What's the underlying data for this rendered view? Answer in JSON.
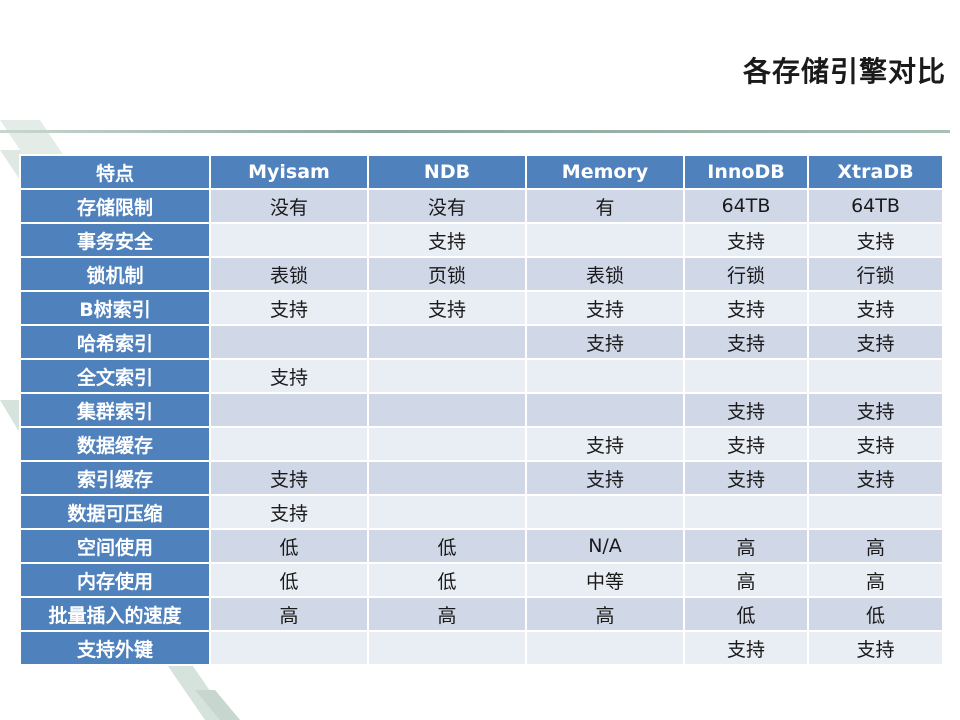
{
  "slide": {
    "title": "各存储引擎对比"
  },
  "table": {
    "headers": [
      "特点",
      "Myisam",
      "NDB",
      "Memory",
      "InnoDB",
      "XtraDB"
    ],
    "rows": [
      {
        "feature": "存储限制",
        "cells": [
          "没有",
          "没有",
          "有",
          "64TB",
          "64TB"
        ]
      },
      {
        "feature": "事务安全",
        "cells": [
          "",
          "支持",
          "",
          "支持",
          "支持"
        ]
      },
      {
        "feature": "锁机制",
        "cells": [
          "表锁",
          "页锁",
          "表锁",
          "行锁",
          "行锁"
        ]
      },
      {
        "feature": "B树索引",
        "cells": [
          "支持",
          "支持",
          "支持",
          "支持",
          "支持"
        ]
      },
      {
        "feature": "哈希索引",
        "cells": [
          "",
          "",
          "支持",
          "支持",
          "支持"
        ]
      },
      {
        "feature": "全文索引",
        "cells": [
          "支持",
          "",
          "",
          "",
          ""
        ]
      },
      {
        "feature": "集群索引",
        "cells": [
          "",
          "",
          "",
          "支持",
          "支持"
        ]
      },
      {
        "feature": "数据缓存",
        "cells": [
          "",
          "",
          "支持",
          "支持",
          "支持"
        ]
      },
      {
        "feature": "索引缓存",
        "cells": [
          "支持",
          "",
          "支持",
          "支持",
          "支持"
        ]
      },
      {
        "feature": "数据可压缩",
        "cells": [
          "支持",
          "",
          "",
          "",
          ""
        ]
      },
      {
        "feature": "空间使用",
        "cells": [
          "低",
          "低",
          "N/A",
          "高",
          "高"
        ]
      },
      {
        "feature": "内存使用",
        "cells": [
          "低",
          "低",
          "中等",
          "高",
          "高"
        ]
      },
      {
        "feature": "批量插入的速度",
        "cells": [
          "高",
          "高",
          "高",
          "低",
          "低"
        ]
      },
      {
        "feature": "支持外键",
        "cells": [
          "",
          "",
          "",
          "支持",
          "支持"
        ]
      }
    ]
  },
  "colors": {
    "header_bg": "#4f81bd",
    "row_odd_bg": "#d0d8e8",
    "row_even_bg": "#e9edf4"
  }
}
